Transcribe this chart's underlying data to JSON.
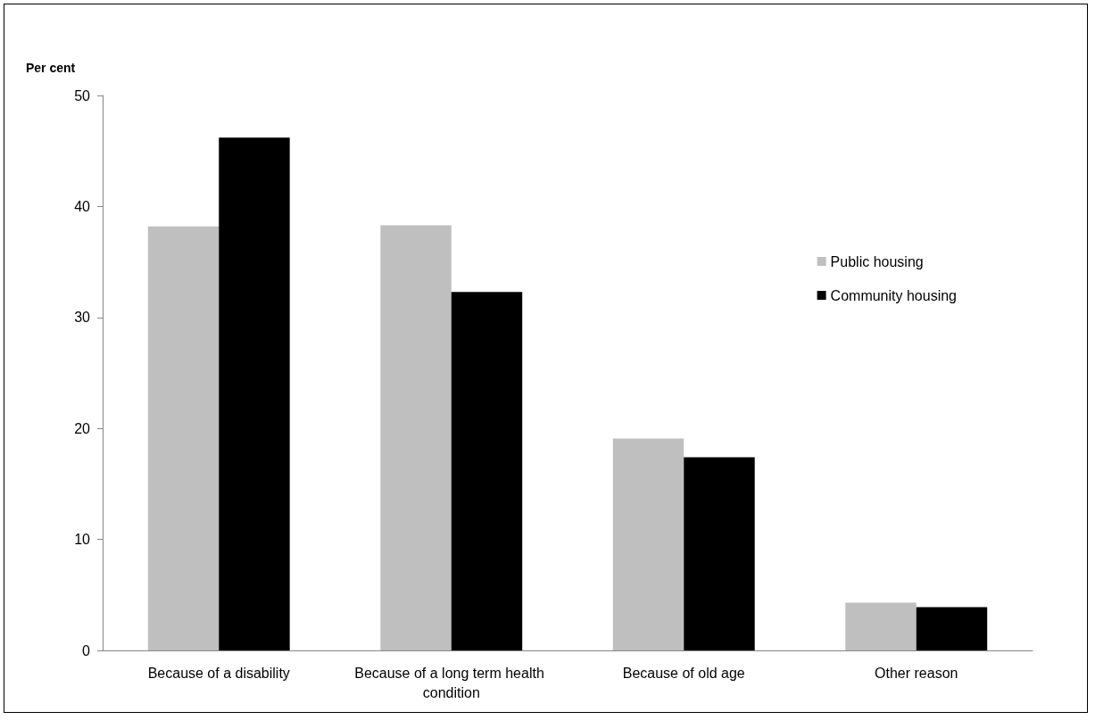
{
  "chart_data": {
    "type": "bar",
    "ylabel": "Per cent",
    "categories": [
      "Because of a disability",
      "Because of a long term health condition",
      "Because of old age",
      "Other reason"
    ],
    "series": [
      {
        "name": "Public housing",
        "color": "#bfbfbf",
        "values": [
          38.2,
          38.3,
          19.1,
          4.3
        ]
      },
      {
        "name": "Community housing",
        "color": "#000000",
        "values": [
          46.2,
          32.3,
          17.4,
          3.9
        ]
      }
    ],
    "ylim": [
      0,
      50
    ],
    "yticks": [
      0,
      10,
      20,
      30,
      40,
      50
    ],
    "grid": false,
    "legend": "right"
  }
}
